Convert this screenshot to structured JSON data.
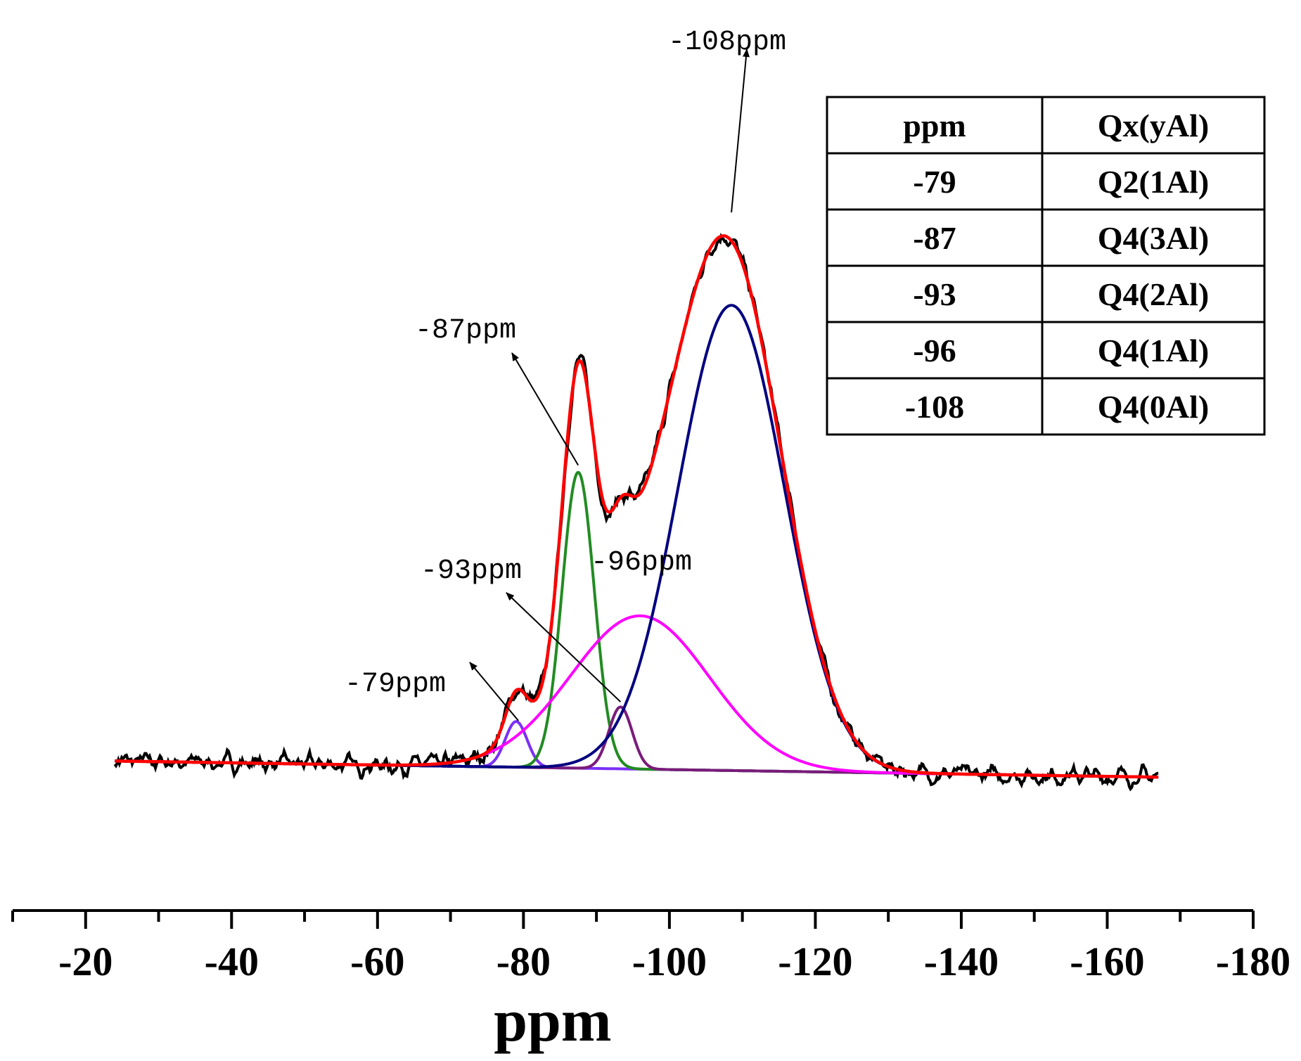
{
  "chart_data": {
    "type": "line",
    "xlabel": "ppm",
    "ylabel": "",
    "xlim": [
      -10,
      -180
    ],
    "x_ticks": [
      -20,
      -40,
      -60,
      -80,
      -100,
      -120,
      -140,
      -160,
      -180
    ],
    "x_tick_labels": [
      "-20",
      "-40",
      "-60",
      "-80",
      "-100",
      "-120",
      "-140",
      "-160",
      "-180"
    ],
    "x_range": [
      -24,
      -167
    ],
    "baseline": {
      "start_x": -24,
      "start_y": 0.01,
      "end_x": -167,
      "end_y": -0.02
    },
    "components": [
      {
        "center": -79,
        "amp": 0.085,
        "width": 1.5,
        "color": "#7b2ff7"
      },
      {
        "center": -87.5,
        "amp": 0.55,
        "width": 2.2,
        "color": "#228b22"
      },
      {
        "center": -93.3,
        "amp": 0.115,
        "width": 1.6,
        "color": "#7a1c7a"
      },
      {
        "center": -96,
        "amp": 0.285,
        "width": 9.5,
        "color": "#ff00ff"
      },
      {
        "center": -108.5,
        "amp": 0.865,
        "width": 7.3,
        "color": "#000080"
      }
    ],
    "fit_color": "#ff0000",
    "experimental_color": "#000000",
    "annotations": [
      {
        "text": "-108ppm",
        "peak_x": -108.5,
        "peak_y": 1.03
      },
      {
        "text": "-87ppm",
        "peak_x": -87.5,
        "peak_y": 0.56
      },
      {
        "text": "-96ppm",
        "peak_x": -96,
        "peak_y": 0.3
      },
      {
        "text": "-93ppm",
        "peak_x": -93.3,
        "peak_y": 0.12
      },
      {
        "text": "-79ppm",
        "peak_x": -79.3,
        "peak_y": 0.085
      }
    ],
    "table": {
      "headers": [
        "ppm",
        "Qx(yAl)"
      ],
      "rows": [
        [
          "-79",
          "Q2(1Al)"
        ],
        [
          "-87",
          "Q4(3Al)"
        ],
        [
          "-93",
          "Q4(2Al)"
        ],
        [
          "-96",
          "Q4(1Al)"
        ],
        [
          "-108",
          "Q4(0Al)"
        ]
      ]
    }
  }
}
